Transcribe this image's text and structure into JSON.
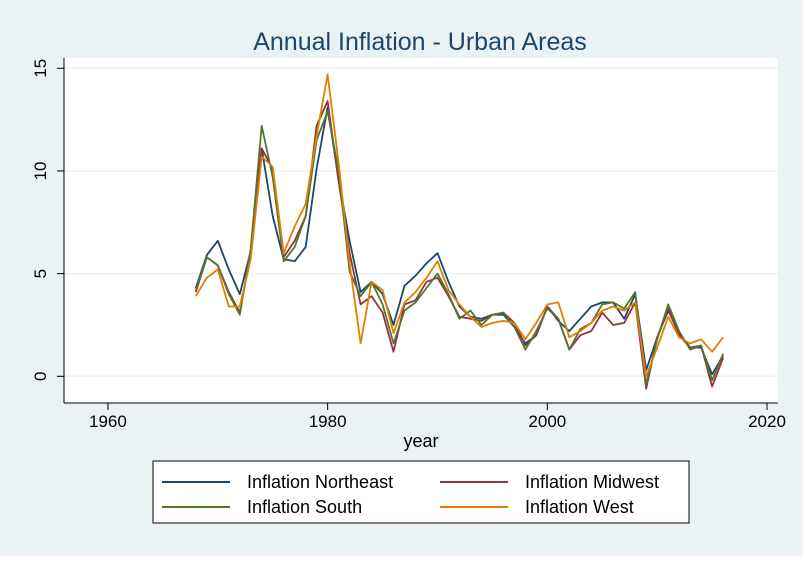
{
  "chart_data": {
    "type": "line",
    "title": "Annual Inflation - Urban Areas",
    "xlabel": "year",
    "ylabel": "",
    "xlim": [
      1956,
      2021
    ],
    "ylim": [
      -1.3,
      15.5
    ],
    "x_ticks": [
      1960,
      1980,
      2000,
      2020
    ],
    "y_ticks": [
      0,
      5,
      10,
      15
    ],
    "grid": true,
    "legend_position": "bottom",
    "x": [
      1968,
      1969,
      1970,
      1971,
      1972,
      1973,
      1974,
      1975,
      1976,
      1977,
      1978,
      1979,
      1980,
      1981,
      1982,
      1983,
      1984,
      1985,
      1986,
      1987,
      1988,
      1989,
      1990,
      1991,
      1992,
      1993,
      1994,
      1995,
      1996,
      1997,
      1998,
      1999,
      2000,
      2001,
      2002,
      2003,
      2004,
      2005,
      2006,
      2007,
      2008,
      2009,
      2010,
      2011,
      2012,
      2013,
      2014,
      2015,
      2016
    ],
    "series": [
      {
        "name": "Inflation Northeast",
        "color": "#1a476f",
        "values": [
          4.3,
          5.9,
          6.6,
          5.2,
          4.0,
          6.1,
          11.1,
          7.8,
          5.7,
          5.6,
          6.3,
          10.1,
          13.1,
          9.6,
          6.6,
          4.1,
          4.6,
          4.0,
          2.5,
          4.4,
          4.9,
          5.5,
          6.0,
          4.6,
          3.4,
          2.9,
          2.8,
          3.0,
          3.0,
          2.4,
          1.6,
          2.0,
          3.4,
          2.7,
          2.2,
          2.8,
          3.4,
          3.6,
          3.6,
          2.8,
          4.0,
          0.3,
          1.9,
          3.2,
          2.1,
          1.4,
          1.4,
          0.1,
          1.0
        ]
      },
      {
        "name": "Inflation Midwest",
        "color": "#90353b",
        "values": [
          4.1,
          5.8,
          5.4,
          4.1,
          3.1,
          6.0,
          11.1,
          10.1,
          5.8,
          6.6,
          7.8,
          12.2,
          13.4,
          9.5,
          6.0,
          3.5,
          3.9,
          3.1,
          1.2,
          3.5,
          3.7,
          4.6,
          4.8,
          3.9,
          2.9,
          2.8,
          2.7,
          3.0,
          3.1,
          2.6,
          1.5,
          2.0,
          3.4,
          2.8,
          1.3,
          2.0,
          2.2,
          3.1,
          2.5,
          2.6,
          3.6,
          -0.6,
          1.9,
          3.3,
          2.0,
          1.4,
          1.5,
          -0.5,
          0.9
        ]
      },
      {
        "name": "Inflation South",
        "color": "#55752f",
        "values": [
          4.2,
          5.8,
          5.4,
          4.0,
          3.0,
          6.2,
          12.2,
          9.7,
          5.6,
          6.3,
          7.8,
          11.5,
          12.9,
          10.0,
          5.1,
          3.9,
          4.6,
          3.5,
          1.6,
          3.2,
          3.6,
          4.3,
          5.0,
          4.0,
          2.8,
          3.2,
          2.5,
          3.0,
          3.1,
          2.4,
          1.3,
          2.2,
          3.3,
          2.8,
          1.3,
          2.3,
          2.6,
          3.5,
          3.6,
          3.3,
          4.1,
          -0.4,
          1.8,
          3.5,
          2.2,
          1.3,
          1.5,
          -0.2,
          1.1
        ]
      },
      {
        "name": "Inflation West",
        "color": "#e37e00",
        "values": [
          3.9,
          4.8,
          5.2,
          3.4,
          3.4,
          5.7,
          10.7,
          10.2,
          6.0,
          7.3,
          8.4,
          11.7,
          14.7,
          10.4,
          5.5,
          1.6,
          4.6,
          4.2,
          2.1,
          3.6,
          4.1,
          4.8,
          5.6,
          4.2,
          3.5,
          2.9,
          2.4,
          2.6,
          2.7,
          2.6,
          1.8,
          2.6,
          3.5,
          3.6,
          1.9,
          2.2,
          2.6,
          3.2,
          3.4,
          3.2,
          3.6,
          0.0,
          1.4,
          2.9,
          1.9,
          1.6,
          1.8,
          1.2,
          1.9
        ]
      }
    ]
  }
}
